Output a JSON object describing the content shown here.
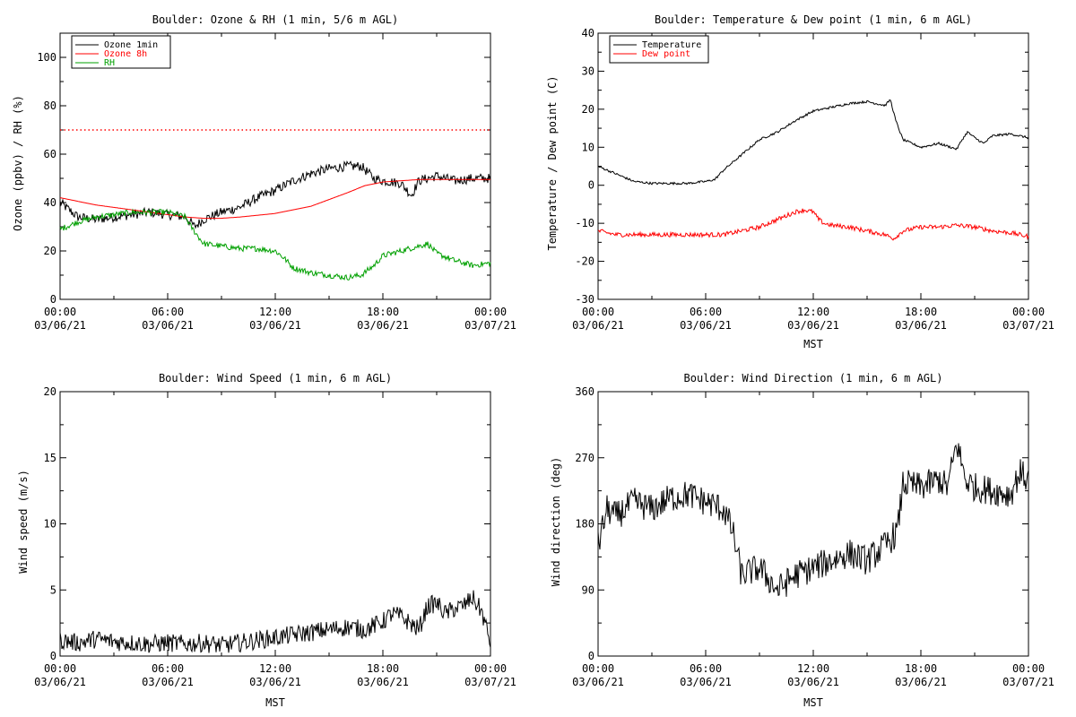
{
  "chart_data": [
    {
      "type": "line",
      "title": "Boulder: Ozone & RH (1 min, 5/6 m AGL)",
      "xlabel": "",
      "ylabel": "Ozone (ppbv) / RH (%)",
      "xlim": [
        0,
        24
      ],
      "ylim": [
        0,
        110
      ],
      "xticks": [
        {
          "t1": "00:00",
          "t2": "03/06/21"
        },
        {
          "t1": "06:00",
          "t2": "03/06/21"
        },
        {
          "t1": "12:00",
          "t2": "03/06/21"
        },
        {
          "t1": "18:00",
          "t2": "03/06/21"
        },
        {
          "t1": "00:00",
          "t2": "03/07/21"
        }
      ],
      "yticks": [
        "0",
        "20",
        "40",
        "60",
        "80",
        "100"
      ],
      "legend": "top-left",
      "reference_lines": [
        {
          "y": 70,
          "color": "#ff0000",
          "style": "dotted"
        }
      ],
      "series": [
        {
          "name": "Ozone 1min",
          "color": "#000000",
          "noise": 2.0,
          "x": [
            0,
            1,
            2,
            3,
            4,
            5,
            6,
            7,
            7.5,
            8,
            9,
            10,
            11,
            12,
            13,
            14,
            15,
            16,
            16.8,
            17.5,
            18,
            19,
            19.6,
            20,
            21,
            22,
            23,
            24
          ],
          "y": [
            40,
            34,
            33,
            34,
            35,
            36,
            35,
            34,
            30,
            33,
            36,
            38,
            42,
            45,
            49,
            52,
            54,
            55,
            55,
            50,
            49,
            48,
            43,
            49,
            51,
            49,
            50,
            50
          ]
        },
        {
          "name": "Ozone 8h",
          "color": "#ff0000",
          "noise": 0,
          "x": [
            0,
            2,
            4,
            6,
            7,
            8,
            9,
            10,
            12,
            14,
            16,
            17,
            18,
            19,
            20,
            22,
            24
          ],
          "y": [
            42,
            39,
            37,
            35,
            34,
            33.5,
            33.5,
            34,
            35.5,
            38.5,
            44,
            47,
            48.5,
            49,
            49.5,
            49.5,
            49.5
          ]
        },
        {
          "name": "RH",
          "color": "#00a000",
          "noise": 1.2,
          "x": [
            0,
            1,
            2,
            3,
            4,
            5,
            6,
            7,
            7.3,
            7.6,
            8,
            9,
            10,
            11,
            12,
            12.5,
            13,
            14,
            15,
            16,
            16.8,
            17.5,
            18,
            19,
            20,
            20.5,
            21,
            22,
            23,
            24
          ],
          "y": [
            29,
            32,
            34,
            35,
            36,
            36,
            36,
            34,
            30,
            27,
            23,
            22,
            21,
            21,
            20,
            17,
            13,
            11,
            10,
            9,
            10,
            14,
            18,
            20,
            22,
            23,
            19,
            16,
            14,
            15
          ]
        }
      ]
    },
    {
      "type": "line",
      "title": "Boulder: Temperature & Dew point (1 min, 6 m AGL)",
      "xlabel": "MST",
      "ylabel": "Temperature / Dew point (C)",
      "xlim": [
        0,
        24
      ],
      "ylim": [
        -30,
        40
      ],
      "xticks": [
        {
          "t1": "00:00",
          "t2": "03/06/21"
        },
        {
          "t1": "06:00",
          "t2": "03/06/21"
        },
        {
          "t1": "12:00",
          "t2": "03/06/21"
        },
        {
          "t1": "18:00",
          "t2": "03/06/21"
        },
        {
          "t1": "00:00",
          "t2": "03/07/21"
        }
      ],
      "yticks": [
        "-30",
        "-20",
        "-10",
        "0",
        "10",
        "20",
        "30",
        "40"
      ],
      "legend": "top-left",
      "series": [
        {
          "name": "Temperature",
          "color": "#000000",
          "noise": 0.3,
          "x": [
            0,
            1,
            2,
            3,
            4,
            5,
            6,
            6.5,
            7,
            8,
            9,
            10,
            11,
            12,
            13,
            14,
            15,
            16,
            16.3,
            16.6,
            17,
            18,
            19,
            20,
            20.3,
            20.6,
            21,
            21.5,
            22,
            23,
            24
          ],
          "y": [
            5,
            3,
            1,
            0.5,
            0.5,
            0.5,
            1,
            1.5,
            4,
            8,
            12,
            14,
            17,
            19.5,
            20.5,
            21.5,
            22,
            21,
            22.5,
            17,
            12,
            10,
            11,
            9.5,
            12,
            14,
            12.5,
            11,
            13,
            13.5,
            12.5
          ]
        },
        {
          "name": "Dew point",
          "color": "#ff0000",
          "noise": 0.6,
          "x": [
            0,
            1,
            2,
            3,
            4,
            5,
            6,
            7,
            8,
            9,
            10,
            11,
            11.5,
            12,
            12.3,
            12.6,
            13,
            14,
            15,
            16,
            16.5,
            17,
            18,
            19,
            20,
            21,
            22,
            23,
            24
          ],
          "y": [
            -12,
            -13,
            -13,
            -13,
            -13,
            -13,
            -13,
            -13,
            -12,
            -11,
            -9,
            -7,
            -6.5,
            -7,
            -9,
            -10,
            -10.5,
            -11,
            -12,
            -13,
            -14,
            -12,
            -11,
            -11,
            -10.5,
            -11,
            -12,
            -12.5,
            -13.5
          ]
        }
      ]
    },
    {
      "type": "line",
      "title": "Boulder: Wind Speed (1 min, 6 m AGL)",
      "xlabel": "MST",
      "ylabel": "Wind speed (m/s)",
      "xlim": [
        0,
        24
      ],
      "ylim": [
        0,
        20
      ],
      "xticks": [
        {
          "t1": "00:00",
          "t2": "03/06/21"
        },
        {
          "t1": "06:00",
          "t2": "03/06/21"
        },
        {
          "t1": "12:00",
          "t2": "03/06/21"
        },
        {
          "t1": "18:00",
          "t2": "03/06/21"
        },
        {
          "t1": "00:00",
          "t2": "03/07/21"
        }
      ],
      "yticks": [
        "0",
        "5",
        "10",
        "15",
        "20"
      ],
      "legend": "none",
      "series": [
        {
          "name": "",
          "color": "#000000",
          "noise": 0.7,
          "x": [
            0,
            1,
            2,
            3,
            4,
            5,
            6,
            7,
            8,
            9,
            10,
            11,
            12,
            13,
            14,
            15,
            16,
            17,
            18,
            18.5,
            19,
            19.5,
            20,
            20.5,
            21,
            21.5,
            22,
            22.5,
            23,
            23.5,
            24
          ],
          "y": [
            1.2,
            1.0,
            1.3,
            1.1,
            1.0,
            0.9,
            1.0,
            0.9,
            1.0,
            0.8,
            1.0,
            1.2,
            1.4,
            1.6,
            1.8,
            2.0,
            2.2,
            2.0,
            2.6,
            3.2,
            3.0,
            2.5,
            2.0,
            3.8,
            4.0,
            3.2,
            3.6,
            3.8,
            4.4,
            3.4,
            1.0
          ]
        }
      ]
    },
    {
      "type": "line",
      "title": "Boulder: Wind Direction (1 min, 6 m AGL)",
      "xlabel": "MST",
      "ylabel": "Wind direction (deg)",
      "xlim": [
        0,
        24
      ],
      "ylim": [
        0,
        360
      ],
      "xticks": [
        {
          "t1": "00:00",
          "t2": "03/06/21"
        },
        {
          "t1": "06:00",
          "t2": "03/06/21"
        },
        {
          "t1": "12:00",
          "t2": "03/06/21"
        },
        {
          "t1": "18:00",
          "t2": "03/06/21"
        },
        {
          "t1": "00:00",
          "t2": "03/07/21"
        }
      ],
      "yticks": [
        "0",
        "90",
        "180",
        "270",
        "360"
      ],
      "legend": "none",
      "series": [
        {
          "name": "",
          "color": "#000000",
          "noise": 20,
          "x": [
            0,
            0.5,
            1,
            2,
            3,
            4,
            5,
            6,
            7,
            7.5,
            8,
            9,
            10,
            11,
            12,
            13,
            14,
            15,
            16,
            16.7,
            17,
            18,
            19,
            19.5,
            20,
            20.5,
            21,
            22,
            23,
            23.5,
            24
          ],
          "y": [
            150,
            200,
            190,
            210,
            200,
            215,
            220,
            210,
            200,
            170,
            110,
            120,
            90,
            110,
            120,
            130,
            140,
            130,
            150,
            170,
            235,
            230,
            240,
            230,
            290,
            240,
            230,
            225,
            220,
            250,
            240
          ]
        }
      ]
    }
  ]
}
